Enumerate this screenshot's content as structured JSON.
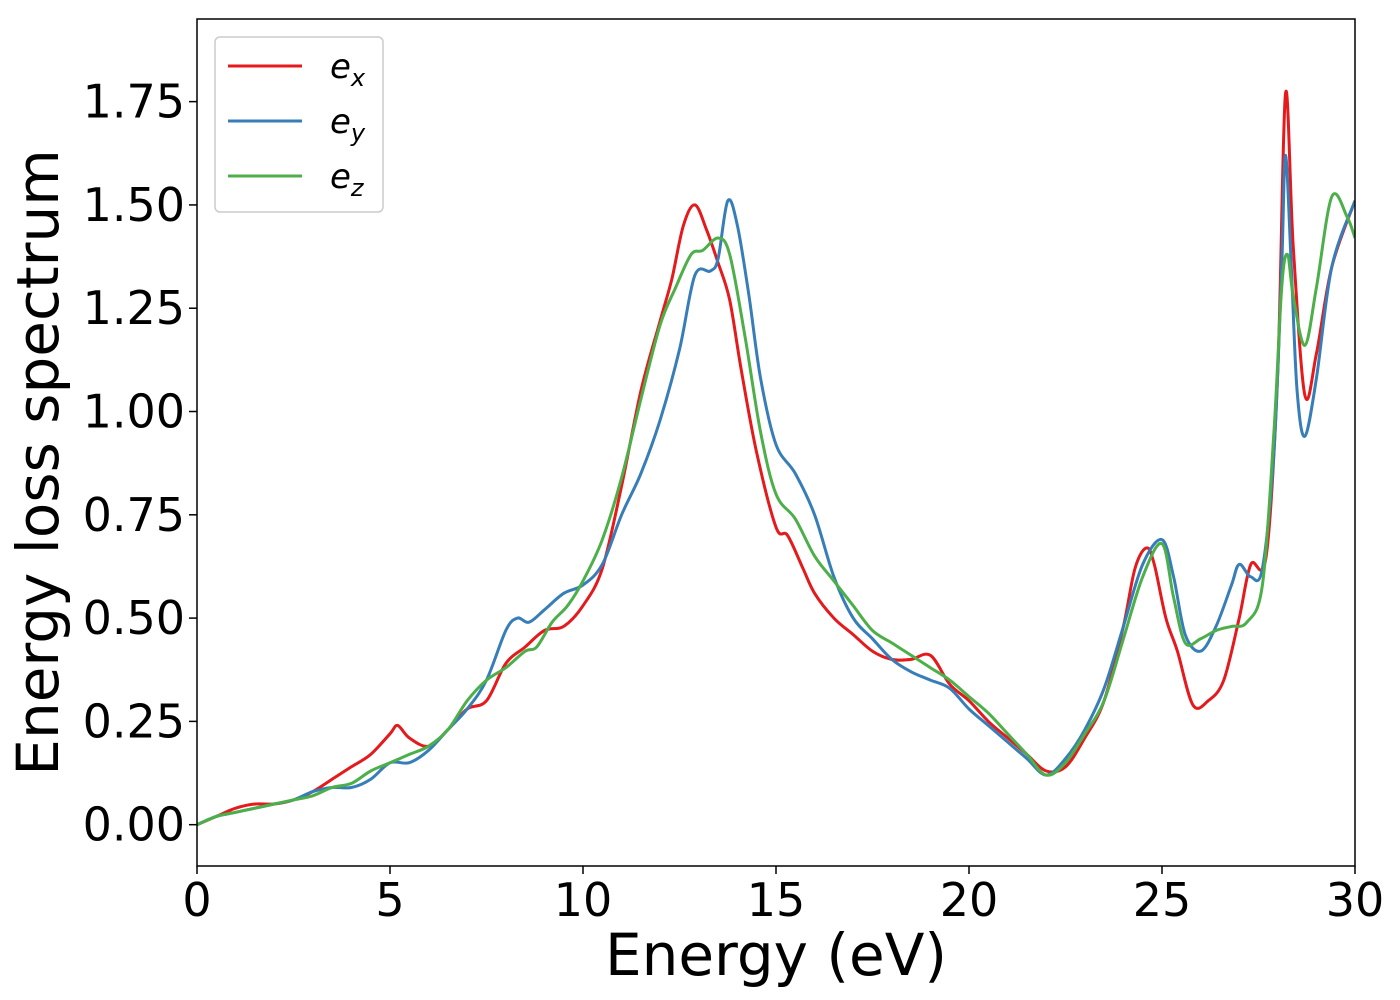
{
  "chart_data": {
    "type": "line",
    "title": "",
    "xlabel": "Energy (eV)",
    "ylabel": "Energy loss spectrum",
    "xlim": [
      0,
      30
    ],
    "ylim": [
      -0.1,
      1.95
    ],
    "xticks": [
      0,
      5,
      10,
      15,
      20,
      25,
      30
    ],
    "xtick_labels": [
      "0",
      "5",
      "10",
      "15",
      "20",
      "25",
      "30"
    ],
    "yticks": [
      0.0,
      0.25,
      0.5,
      0.75,
      1.0,
      1.25,
      1.5,
      1.75
    ],
    "ytick_labels": [
      "0.00",
      "0.25",
      "0.50",
      "0.75",
      "1.00",
      "1.25",
      "1.50",
      "1.75"
    ],
    "grid": false,
    "legend_position": "top-left",
    "series": [
      {
        "name": "e_x",
        "legend_base": "e",
        "legend_sub": "x",
        "color": "#e41a1c",
        "x": [
          0,
          0.5,
          1,
          1.5,
          2,
          2.5,
          3,
          3.5,
          4,
          4.5,
          5,
          5.2,
          5.5,
          6,
          6.5,
          7,
          7.5,
          8,
          8.5,
          9,
          9.5,
          10,
          10.5,
          11,
          11.5,
          12,
          12.3,
          12.6,
          12.9,
          13.2,
          13.5,
          13.8,
          14.1,
          14.5,
          15,
          15.3,
          15.7,
          16,
          16.5,
          17,
          17.5,
          18,
          18.5,
          19,
          19.5,
          20,
          20.5,
          21,
          21.5,
          22,
          22.5,
          23,
          23.5,
          24,
          24.3,
          24.6,
          24.8,
          25.1,
          25.4,
          25.8,
          26.2,
          26.6,
          27,
          27.3,
          27.7,
          28,
          28.2,
          28.4,
          28.7,
          29,
          29.4,
          30
        ],
        "y": [
          0,
          0.02,
          0.04,
          0.05,
          0.05,
          0.06,
          0.08,
          0.11,
          0.14,
          0.17,
          0.22,
          0.24,
          0.21,
          0.19,
          0.23,
          0.28,
          0.3,
          0.39,
          0.43,
          0.47,
          0.48,
          0.53,
          0.62,
          0.82,
          1.05,
          1.22,
          1.32,
          1.45,
          1.5,
          1.44,
          1.36,
          1.27,
          1.1,
          0.9,
          0.72,
          0.7,
          0.62,
          0.56,
          0.5,
          0.46,
          0.42,
          0.4,
          0.4,
          0.41,
          0.34,
          0.3,
          0.25,
          0.21,
          0.17,
          0.13,
          0.14,
          0.21,
          0.3,
          0.48,
          0.62,
          0.67,
          0.63,
          0.5,
          0.42,
          0.29,
          0.3,
          0.35,
          0.5,
          0.63,
          0.65,
          1.1,
          1.77,
          1.4,
          1.04,
          1.14,
          1.35,
          1.51
        ]
      },
      {
        "name": "e_y",
        "legend_base": "e",
        "legend_sub": "y",
        "color": "#377eb8",
        "x": [
          0,
          0.5,
          1,
          1.5,
          2,
          2.5,
          3,
          3.5,
          4,
          4.5,
          5,
          5.5,
          6,
          6.5,
          7,
          7.5,
          8,
          8.3,
          8.6,
          9,
          9.5,
          10,
          10.5,
          11,
          11.5,
          12,
          12.5,
          12.9,
          13.3,
          13.5,
          13.75,
          14,
          14.3,
          14.6,
          15,
          15.5,
          16,
          16.5,
          17,
          17.5,
          18,
          18.5,
          19,
          19.5,
          20,
          20.5,
          21,
          21.5,
          22,
          22.5,
          23,
          23.5,
          24,
          24.5,
          25,
          25.3,
          25.6,
          26,
          26.4,
          26.8,
          27,
          27.3,
          27.6,
          27.9,
          28.1,
          28.2,
          28.35,
          28.5,
          28.7,
          29,
          29.4,
          30
        ],
        "y": [
          0,
          0.02,
          0.03,
          0.04,
          0.05,
          0.06,
          0.08,
          0.09,
          0.09,
          0.11,
          0.15,
          0.15,
          0.18,
          0.23,
          0.28,
          0.35,
          0.47,
          0.5,
          0.49,
          0.52,
          0.56,
          0.58,
          0.63,
          0.75,
          0.85,
          0.98,
          1.15,
          1.33,
          1.34,
          1.37,
          1.51,
          1.45,
          1.28,
          1.08,
          0.92,
          0.85,
          0.75,
          0.6,
          0.5,
          0.45,
          0.4,
          0.37,
          0.35,
          0.33,
          0.28,
          0.24,
          0.2,
          0.16,
          0.12,
          0.16,
          0.23,
          0.33,
          0.48,
          0.63,
          0.69,
          0.6,
          0.46,
          0.42,
          0.48,
          0.58,
          0.63,
          0.6,
          0.62,
          0.9,
          1.35,
          1.62,
          1.35,
          1.05,
          0.94,
          1.08,
          1.35,
          1.51
        ]
      },
      {
        "name": "e_z",
        "legend_base": "e",
        "legend_sub": "z",
        "color": "#4daf4a",
        "x": [
          0,
          0.5,
          1,
          1.5,
          2,
          2.5,
          3,
          3.5,
          4,
          4.5,
          5,
          5.5,
          6,
          6.5,
          7,
          7.5,
          8,
          8.5,
          8.8,
          9.2,
          9.6,
          10,
          10.5,
          11,
          11.5,
          12,
          12.4,
          12.8,
          13.1,
          13.5,
          13.8,
          14.2,
          14.6,
          15,
          15.5,
          16,
          16.5,
          17,
          17.5,
          18,
          18.5,
          19,
          19.5,
          20,
          20.5,
          21,
          21.5,
          22,
          22.5,
          23,
          23.5,
          24,
          24.5,
          25,
          25.3,
          25.6,
          26,
          26.4,
          26.8,
          27.2,
          27.6,
          27.9,
          28.1,
          28.25,
          28.4,
          28.7,
          29,
          29.4,
          29.8,
          30
        ],
        "y": [
          0,
          0.02,
          0.03,
          0.04,
          0.05,
          0.06,
          0.07,
          0.09,
          0.1,
          0.13,
          0.15,
          0.17,
          0.19,
          0.23,
          0.3,
          0.35,
          0.38,
          0.42,
          0.43,
          0.49,
          0.53,
          0.59,
          0.69,
          0.84,
          1.03,
          1.21,
          1.3,
          1.38,
          1.39,
          1.42,
          1.38,
          1.18,
          0.95,
          0.8,
          0.74,
          0.65,
          0.59,
          0.53,
          0.47,
          0.44,
          0.41,
          0.38,
          0.35,
          0.31,
          0.27,
          0.22,
          0.17,
          0.12,
          0.15,
          0.22,
          0.3,
          0.45,
          0.6,
          0.68,
          0.55,
          0.44,
          0.45,
          0.47,
          0.48,
          0.49,
          0.58,
          0.95,
          1.3,
          1.38,
          1.28,
          1.16,
          1.3,
          1.52,
          1.47,
          1.42
        ]
      }
    ]
  }
}
